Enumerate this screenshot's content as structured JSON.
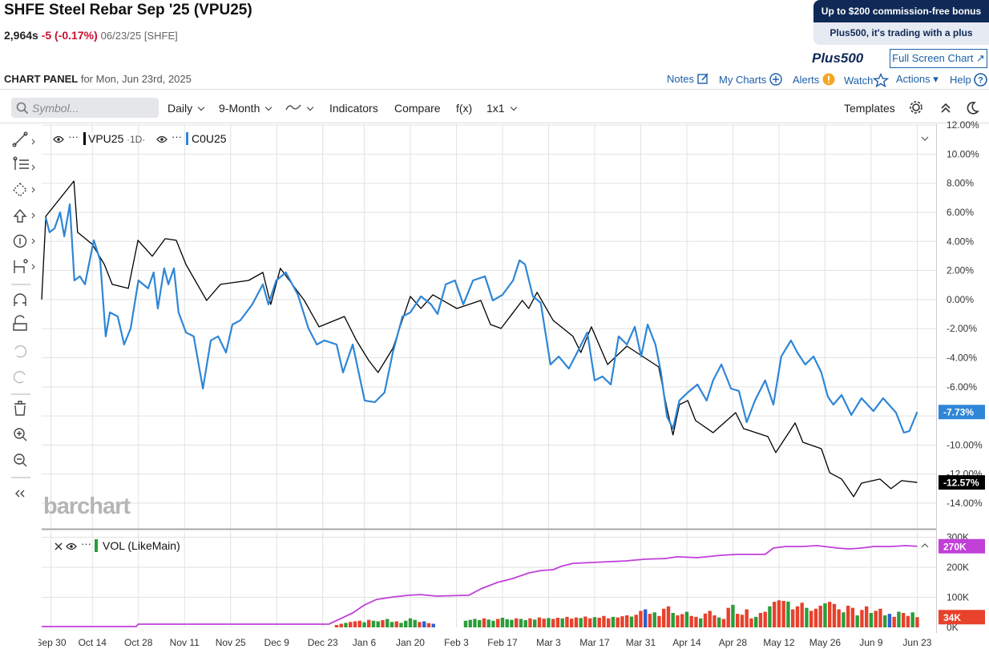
{
  "header": {
    "title": "SHFE Steel Rebar Sep '25 (VPU25)",
    "price": "2,964s",
    "change": "-5 (-0.17%)",
    "date": "06/23/25 [SHFE]"
  },
  "ad": {
    "headline": "Up to $200 commission-free bonus",
    "tagline": "Plus500, it's trading with a plus",
    "brand": "Plus500",
    "button": "Full Screen Chart"
  },
  "panel": {
    "title": "CHART PANEL",
    "date": "for Mon, Jun 23rd, 2025",
    "links": [
      "Notes",
      "My Charts",
      "Alerts",
      "Watch",
      "Actions",
      "Help"
    ]
  },
  "toolbar": {
    "search": "Symbol...",
    "items": [
      "Daily",
      "9-Month",
      "Indicators",
      "Compare",
      "f(x)",
      "1x1"
    ],
    "templates": "Templates"
  },
  "watermark": "barchart",
  "chart_data": [
    {
      "type": "line",
      "interval": "·1D·",
      "grid": true,
      "xlim": [
        0,
        194.1
      ],
      "xticks": [
        {
          "value": 2,
          "label": "Sep 30"
        },
        {
          "value": 11,
          "label": "Oct 14"
        },
        {
          "value": 21,
          "label": "Oct 28"
        },
        {
          "value": 31,
          "label": "Nov 11"
        },
        {
          "value": 41,
          "label": "Nov 25"
        },
        {
          "value": 51,
          "label": "Dec 9"
        },
        {
          "value": 61,
          "label": "Dec 23"
        },
        {
          "value": 70,
          "label": "Jan 6"
        },
        {
          "value": 80,
          "label": "Jan 20"
        },
        {
          "value": 90,
          "label": "Feb 3"
        },
        {
          "value": 100,
          "label": "Feb 17"
        },
        {
          "value": 110,
          "label": "Mar 3"
        },
        {
          "value": 120,
          "label": "Mar 17"
        },
        {
          "value": 130,
          "label": "Mar 31"
        },
        {
          "value": 140,
          "label": "Apr 14"
        },
        {
          "value": 150,
          "label": "Apr 28"
        },
        {
          "value": 160,
          "label": "May 12"
        },
        {
          "value": 170,
          "label": "May 26"
        },
        {
          "value": 180,
          "label": "Jun 9"
        },
        {
          "value": 190,
          "label": "Jun 23"
        }
      ],
      "ylim": [
        -15.76,
        12.06
      ],
      "yticks": [
        {
          "value": 12,
          "label": "12.00%"
        },
        {
          "value": 10,
          "label": "10.00%"
        },
        {
          "value": 8,
          "label": "8.00%"
        },
        {
          "value": 6,
          "label": "6.00%"
        },
        {
          "value": 4,
          "label": "4.00%"
        },
        {
          "value": 2,
          "label": "2.00%"
        },
        {
          "value": 0,
          "label": "0.00%"
        },
        {
          "value": -2,
          "label": "-2.00%"
        },
        {
          "value": -4,
          "label": "-4.00%"
        },
        {
          "value": -6,
          "label": "-6.00%"
        },
        {
          "value": -8,
          "label": "-8.00%"
        },
        {
          "value": -10,
          "label": "-10.00%"
        },
        {
          "value": -12,
          "label": "-12.00%"
        },
        {
          "value": -14,
          "label": "-14.00%"
        }
      ],
      "series": [
        {
          "name": "VPU25",
          "color": "#000000",
          "x": [
            0,
            0.9,
            7.0,
            7.8,
            11.0,
            13.6,
            15.3,
            18.8,
            20.9,
            24.0,
            26.8,
            29.2,
            31.3,
            35.8,
            38.8,
            44.9,
            48.0,
            49.7,
            51.8,
            57.0,
            60.2,
            65.7,
            68.3,
            71.0,
            73.0,
            76.2,
            80.0,
            82.3,
            84.9,
            90.1,
            95.3,
            97.4,
            99.7,
            104.3,
            105.7,
            107.5,
            111.0,
            115.3,
            117.0,
            119.3,
            122.8,
            127.0,
            133.9,
            135.7,
            137.0,
            138.4,
            140.2,
            141.9,
            145.7,
            150.6,
            152.3,
            157.6,
            159.3,
            163.5,
            165.2,
            169.2,
            171.0,
            173.6,
            176.2,
            177.9,
            181.9,
            184.3,
            186.6,
            190
          ],
          "values": [
            0,
            5.73,
            8.15,
            4.63,
            3.8,
            2.42,
            1.05,
            0.77,
            4.08,
            2.98,
            4.19,
            4.08,
            2.42,
            -0.06,
            1.05,
            1.32,
            1.87,
            -0.33,
            2.15,
            -0.06,
            -1.87,
            -1.16,
            -2.81,
            -4.19,
            -5.01,
            -3.36,
            0.22,
            -0.61,
            0.33,
            -0.61,
            -0.06,
            -1.71,
            -1.98,
            -0.06,
            -0.61,
            0.5,
            -1.43,
            -2.53,
            -3.64,
            -1.87,
            -4.46,
            -3.2,
            -4.63,
            -7.49,
            -9.31,
            -7.22,
            -6.94,
            -8.32,
            -9.15,
            -7.77,
            -8.87,
            -9.42,
            -10.52,
            -8.48,
            -9.81,
            -10.25,
            -11.9,
            -12.34,
            -13.55,
            -12.62,
            -12.34,
            -13.0,
            -12.45,
            -12.57
          ],
          "last_value": -12.57,
          "last_label": "-12.57%"
        },
        {
          "name": "C0U25",
          "color": "#2f86d6",
          "x": [
            0.9,
            1.7,
            2.8,
            4.0,
            4.9,
            6.1,
            7.1,
            8.3,
            9.4,
            11.3,
            12.7,
            13.9,
            14.8,
            16.5,
            17.9,
            19.3,
            21.0,
            23.1,
            24.3,
            25.2,
            26.6,
            27.5,
            28.7,
            29.7,
            31.3,
            33.0,
            35.0,
            36.7,
            38.3,
            40.0,
            41.4,
            43.1,
            45.7,
            48.0,
            49.2,
            50.9,
            53.0,
            55.6,
            57.9,
            59.7,
            61.4,
            64.0,
            65.4,
            67.5,
            70.1,
            72.3,
            74.4,
            76.2,
            78.3,
            80.0,
            82.3,
            84.5,
            85.9,
            87.7,
            89.7,
            91.5,
            93.6,
            96.2,
            97.9,
            100.0,
            102.3,
            103.7,
            104.9,
            106.6,
            108.3,
            110.4,
            112.2,
            114.4,
            116.2,
            118.4,
            120.0,
            121.7,
            123.5,
            125.2,
            127.0,
            128.7,
            130.1,
            131.5,
            133.2,
            134.4,
            135.7,
            137.0,
            138.4,
            140.2,
            142.3,
            144.3,
            145.7,
            147.5,
            149.6,
            151.3,
            153.0,
            154.8,
            157.0,
            158.8,
            160.5,
            162.6,
            164.0,
            165.7,
            167.5,
            169.2,
            170.6,
            171.8,
            173.6,
            175.7,
            177.9,
            180.5,
            182.6,
            185.4,
            187.1,
            188.3,
            190
          ],
          "values": [
            5.62,
            4.63,
            4.9,
            6.0,
            4.35,
            6.56,
            1.32,
            1.6,
            1.05,
            4.08,
            2.7,
            -2.53,
            -0.88,
            -1.16,
            -3.09,
            -1.98,
            1.32,
            0.77,
            1.87,
            -0.61,
            2.15,
            1.05,
            2.15,
            -0.88,
            -2.26,
            -2.53,
            -6.12,
            -2.81,
            -2.53,
            -3.64,
            -1.71,
            -1.43,
            -0.33,
            1.05,
            -0.33,
            1.32,
            1.87,
            0.33,
            -1.98,
            -3.09,
            -2.81,
            -3.09,
            -5.01,
            -3.09,
            -6.94,
            -7.05,
            -6.39,
            -3.64,
            -1.16,
            -0.88,
            0.22,
            -0.33,
            -0.99,
            1.05,
            1.32,
            -0.33,
            1.32,
            1.6,
            -0.06,
            0.33,
            1.32,
            2.7,
            2.42,
            0.22,
            -0.22,
            -4.46,
            -3.91,
            -4.74,
            -3.64,
            -2.26,
            -5.56,
            -5.29,
            -5.84,
            -2.53,
            -3.09,
            -1.87,
            -3.91,
            -1.71,
            -3.09,
            -5.01,
            -8.04,
            -8.87,
            -6.94,
            -6.39,
            -5.84,
            -6.94,
            -5.56,
            -4.46,
            -6.12,
            -6.28,
            -8.43,
            -6.94,
            -5.56,
            -7.22,
            -3.91,
            -2.81,
            -3.64,
            -4.46,
            -3.91,
            -5.01,
            -6.67,
            -7.22,
            -6.56,
            -7.93,
            -6.78,
            -7.66,
            -6.78,
            -7.77,
            -9.15,
            -9.04,
            -7.73
          ],
          "last_value": -7.73,
          "last_label": "-7.73%"
        }
      ]
    },
    {
      "type": "bar",
      "title": "VOL (LikeMain)",
      "grid": true,
      "ylim": [
        0,
        320000
      ],
      "yticks": [
        {
          "value": 300000,
          "label": "300K"
        },
        {
          "value": 200000,
          "label": "200K"
        },
        {
          "value": 100000,
          "label": "100K"
        },
        {
          "value": 0,
          "label": "0K"
        }
      ],
      "series": [
        {
          "type": "line",
          "color": "#c040d8",
          "x": [
            0,
            20.5,
            20.9,
            62.3,
            64.9,
            67.5,
            70.1,
            72.7,
            76.2,
            79.7,
            82.3,
            85.7,
            92.7,
            95.3,
            98.8,
            102.3,
            105.7,
            108.3,
            111.0,
            112.7,
            115.3,
            119.7,
            126.6,
            131.0,
            135.3,
            137.9,
            142.3,
            147.5,
            151.0,
            157.0,
            158.8,
            161.4,
            164.9,
            168.3,
            172.7,
            175.3,
            177.9,
            180.5,
            184.0,
            187.5,
            190
          ],
          "values": [
            2700,
            2700,
            10700,
            10700,
            29000,
            48000,
            75000,
            93000,
            101000,
            107000,
            109000,
            104000,
            107000,
            128000,
            149000,
            163000,
            181000,
            189000,
            192000,
            203000,
            213000,
            216000,
            221000,
            227000,
            229000,
            235000,
            232000,
            240000,
            243000,
            243000,
            264000,
            269000,
            269000,
            272000,
            264000,
            261000,
            264000,
            269000,
            269000,
            272000,
            270000
          ],
          "last_value": 270000,
          "last_label": "270K"
        },
        {
          "type": "bar",
          "color": "#2a9d3a",
          "x": [
            66,
            70,
            72,
            73,
            75,
            76,
            78,
            79,
            80,
            81,
            92,
            93,
            94,
            95,
            97,
            98,
            100,
            101,
            102,
            104,
            105,
            107,
            110,
            113,
            117,
            120,
            124,
            128,
            133,
            137,
            140,
            143,
            147,
            150,
            155,
            158,
            162,
            166,
            170,
            174,
            177,
            180,
            183,
            186,
            189
          ],
          "values": [
            15000,
            17000,
            22000,
            20000,
            28000,
            18000,
            15000,
            22000,
            30000,
            25000,
            22000,
            25000,
            28000,
            24000,
            26000,
            22000,
            32000,
            27000,
            25000,
            28000,
            24000,
            26000,
            31000,
            30000,
            31000,
            34000,
            35000,
            36000,
            50000,
            48000,
            52000,
            30000,
            33000,
            75000,
            35000,
            70000,
            86000,
            65000,
            80000,
            50000,
            40000,
            48000,
            40000,
            52000,
            50000
          ]
        },
        {
          "type": "bar",
          "color": "#2f5fd0",
          "x": [
            83,
            85,
            131,
            184
          ],
          "values": [
            20000,
            12000,
            60000,
            45000
          ]
        },
        {
          "type": "bar",
          "color": "#e8412c",
          "x": [
            64,
            65,
            67,
            68,
            69,
            71,
            74,
            77,
            82,
            84,
            96,
            99,
            103,
            106,
            108,
            109,
            111,
            112,
            114,
            115,
            116,
            118,
            119,
            121,
            122,
            123,
            125,
            126,
            127,
            129,
            130,
            132,
            134,
            135,
            136,
            138,
            139,
            141,
            142,
            144,
            145,
            146,
            148,
            149,
            151,
            152,
            153,
            154,
            156,
            157,
            159,
            160,
            161,
            163,
            164,
            165,
            167,
            168,
            169,
            171,
            172,
            173,
            175,
            176,
            178,
            179,
            181,
            182,
            185,
            187,
            188,
            190
          ],
          "values": [
            8000,
            12000,
            18000,
            20000,
            22000,
            25000,
            24000,
            20000,
            18000,
            14000,
            30000,
            28000,
            30000,
            30000,
            33000,
            29000,
            28000,
            32000,
            35000,
            29000,
            33000,
            36000,
            30000,
            32000,
            38000,
            30000,
            33000,
            37000,
            40000,
            42000,
            55000,
            45000,
            38000,
            62000,
            70000,
            40000,
            44000,
            38000,
            35000,
            46000,
            55000,
            40000,
            28000,
            65000,
            45000,
            42000,
            60000,
            30000,
            48000,
            52000,
            85000,
            90000,
            88000,
            60000,
            70000,
            82000,
            55000,
            62000,
            72000,
            85000,
            78000,
            60000,
            72000,
            65000,
            58000,
            70000,
            55000,
            62000,
            35000,
            48000,
            38000,
            34000
          ],
          "last_value": 34000,
          "last_label": "34K"
        }
      ]
    }
  ]
}
